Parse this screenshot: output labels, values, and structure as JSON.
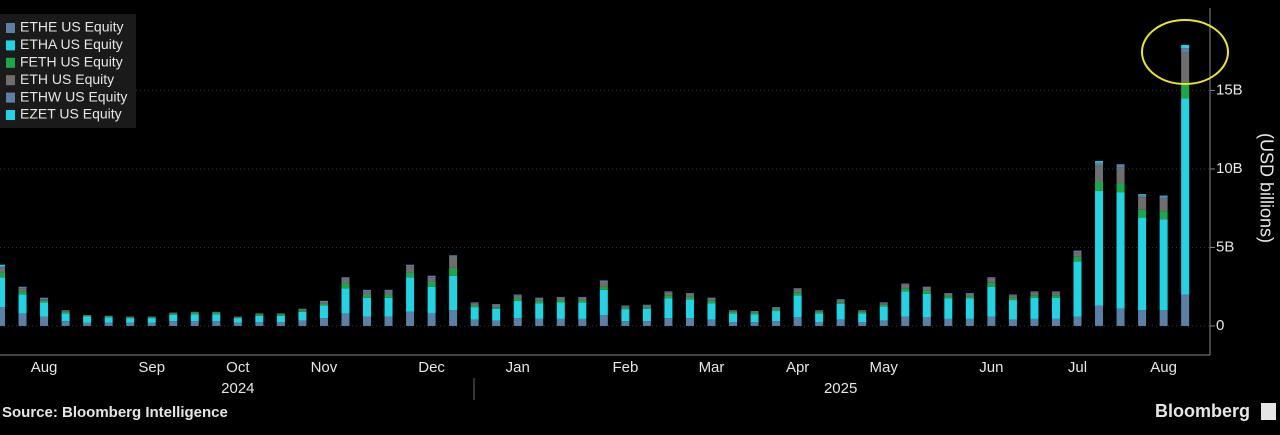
{
  "chart_data": {
    "type": "bar",
    "stacked": true,
    "source": "Source: Bloomberg Intelligence",
    "brand": "Bloomberg",
    "ylabel": "(USD billions)",
    "ylim": [
      -1.85,
      20.25
    ],
    "yticks": [
      0,
      {
        "value": 5,
        "label": "5B"
      },
      {
        "value": 10,
        "label": "10B"
      },
      {
        "value": 15,
        "label": "15B"
      }
    ],
    "grid": true,
    "legend": "upper left",
    "categories": [
      null,
      null,
      "Aug",
      null,
      null,
      null,
      null,
      "Sep",
      null,
      null,
      null,
      "Oct",
      null,
      null,
      null,
      "Nov",
      null,
      null,
      null,
      null,
      "Dec",
      null,
      null,
      null,
      "Jan",
      null,
      null,
      null,
      null,
      "Feb",
      null,
      null,
      null,
      "Mar",
      null,
      null,
      null,
      "Apr",
      null,
      null,
      null,
      "May",
      null,
      null,
      null,
      null,
      "Jun",
      null,
      null,
      null,
      "Jul",
      null,
      null,
      null,
      "Aug",
      null
    ],
    "years": [
      null,
      null,
      null,
      null,
      null,
      null,
      null,
      null,
      null,
      null,
      null,
      "2024",
      null,
      null,
      null,
      null,
      null,
      null,
      null,
      null,
      null,
      null,
      null,
      null,
      null,
      null,
      null,
      null,
      null,
      null,
      null,
      null,
      null,
      null,
      null,
      null,
      null,
      null,
      null,
      "2025",
      null,
      null,
      null,
      null,
      null,
      null,
      null,
      null,
      null,
      null,
      null,
      null,
      null,
      null,
      null,
      null
    ],
    "series": [
      {
        "name": "ETHE US Equity",
        "color": "#5b80a8",
        "values": [
          1.2,
          0.8,
          0.6,
          0.3,
          0.2,
          0.2,
          0.2,
          0.2,
          0.3,
          0.3,
          0.3,
          0.2,
          0.25,
          0.25,
          0.35,
          0.5,
          0.8,
          0.6,
          0.6,
          0.9,
          0.8,
          1.0,
          0.4,
          0.35,
          0.5,
          0.45,
          0.45,
          0.45,
          0.7,
          0.3,
          0.3,
          0.5,
          0.5,
          0.4,
          0.25,
          0.25,
          0.3,
          0.55,
          0.25,
          0.4,
          0.25,
          0.35,
          0.6,
          0.55,
          0.45,
          0.45,
          0.6,
          0.4,
          0.45,
          0.45,
          0.6,
          1.3,
          1.1,
          1.0,
          1.0,
          2.0
        ]
      },
      {
        "name": "ETHA US Equity",
        "color": "#1fd4e4",
        "values": [
          1.9,
          1.2,
          0.9,
          0.5,
          0.4,
          0.35,
          0.3,
          0.3,
          0.4,
          0.45,
          0.45,
          0.3,
          0.4,
          0.4,
          0.55,
          0.8,
          1.6,
          1.2,
          1.2,
          2.2,
          1.7,
          2.2,
          0.8,
          0.75,
          1.1,
          1.0,
          1.05,
          1.05,
          1.6,
          0.75,
          0.8,
          1.25,
          1.2,
          1.05,
          0.55,
          0.5,
          0.65,
          1.4,
          0.55,
          1.0,
          0.55,
          0.9,
          1.6,
          1.5,
          1.3,
          1.3,
          1.9,
          1.25,
          1.35,
          1.35,
          3.5,
          7.3,
          7.4,
          5.9,
          5.8,
          12.5
        ]
      },
      {
        "name": "FETH US Equity",
        "color": "#1aa84b",
        "values": [
          0.3,
          0.2,
          0.1,
          0.1,
          0.05,
          0.05,
          0.05,
          0.05,
          0.1,
          0.1,
          0.1,
          0.05,
          0.1,
          0.1,
          0.1,
          0.1,
          0.3,
          0.2,
          0.2,
          0.3,
          0.3,
          0.5,
          0.1,
          0.1,
          0.15,
          0.15,
          0.15,
          0.15,
          0.2,
          0.1,
          0.1,
          0.2,
          0.15,
          0.15,
          0.1,
          0.1,
          0.1,
          0.2,
          0.1,
          0.1,
          0.1,
          0.1,
          0.2,
          0.2,
          0.15,
          0.15,
          0.25,
          0.15,
          0.15,
          0.15,
          0.3,
          0.6,
          0.6,
          0.5,
          0.5,
          1.0
        ]
      },
      {
        "name": "ETH US Equity",
        "color": "#6e6e6e",
        "values": [
          0.3,
          0.2,
          0.1,
          0.1,
          0.05,
          0.05,
          0.05,
          0.05,
          0.05,
          0.05,
          0.05,
          0.05,
          0.05,
          0.05,
          0.1,
          0.1,
          0.3,
          0.2,
          0.2,
          0.4,
          0.3,
          0.7,
          0.15,
          0.15,
          0.2,
          0.15,
          0.15,
          0.15,
          0.3,
          0.1,
          0.1,
          0.2,
          0.2,
          0.15,
          0.1,
          0.1,
          0.1,
          0.2,
          0.1,
          0.15,
          0.1,
          0.1,
          0.25,
          0.2,
          0.15,
          0.15,
          0.3,
          0.15,
          0.2,
          0.2,
          0.3,
          1.0,
          1.0,
          0.8,
          0.8,
          1.9
        ]
      },
      {
        "name": "ETHW US Equity",
        "color": "#5b80a8",
        "values": [
          0.1,
          0.1,
          0.1,
          0,
          0,
          0,
          0,
          0,
          0,
          0,
          0,
          0,
          0,
          0,
          0,
          0.1,
          0.1,
          0.1,
          0.1,
          0.1,
          0.1,
          0.1,
          0.05,
          0.05,
          0.05,
          0.05,
          0.05,
          0.05,
          0.1,
          0.05,
          0.05,
          0.05,
          0.05,
          0.05,
          0,
          0,
          0.05,
          0.05,
          0,
          0.05,
          0,
          0.05,
          0.05,
          0.05,
          0.05,
          0.05,
          0.05,
          0.05,
          0.05,
          0.05,
          0.1,
          0.2,
          0.2,
          0.15,
          0.15,
          0.3
        ]
      },
      {
        "name": "EZET US Equity",
        "color": "#1fd4e4",
        "values": [
          0.1,
          0,
          0,
          0,
          0,
          0,
          0,
          0,
          0,
          0,
          0,
          0,
          0,
          0,
          0,
          0,
          0,
          0,
          0,
          0,
          0,
          0,
          0,
          0,
          0,
          0,
          0,
          0,
          0,
          0,
          0,
          0,
          0,
          0,
          0,
          0,
          0,
          0,
          0,
          0,
          0,
          0,
          0,
          0,
          0,
          0,
          0,
          0,
          0,
          0,
          0,
          0.1,
          0,
          0.05,
          0.05,
          0.2
        ]
      }
    ]
  }
}
